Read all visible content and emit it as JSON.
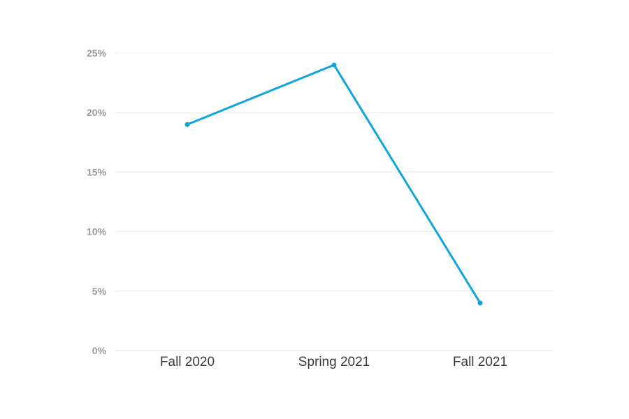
{
  "chart_data": {
    "type": "line",
    "title": "",
    "xlabel": "",
    "ylabel": "",
    "categories": [
      "Fall 2020",
      "Spring 2021",
      "Fall 2021"
    ],
    "series": [
      {
        "values": [
          19,
          24,
          4
        ],
        "color": "#0ea5dc"
      }
    ],
    "ylim": [
      0,
      25
    ],
    "yticks": [
      0,
      5,
      10,
      15,
      20,
      25
    ],
    "ytick_labels": [
      "0%",
      "5%",
      "10%",
      "15%",
      "20%",
      "25%"
    ],
    "grid": true,
    "legend": "none"
  }
}
